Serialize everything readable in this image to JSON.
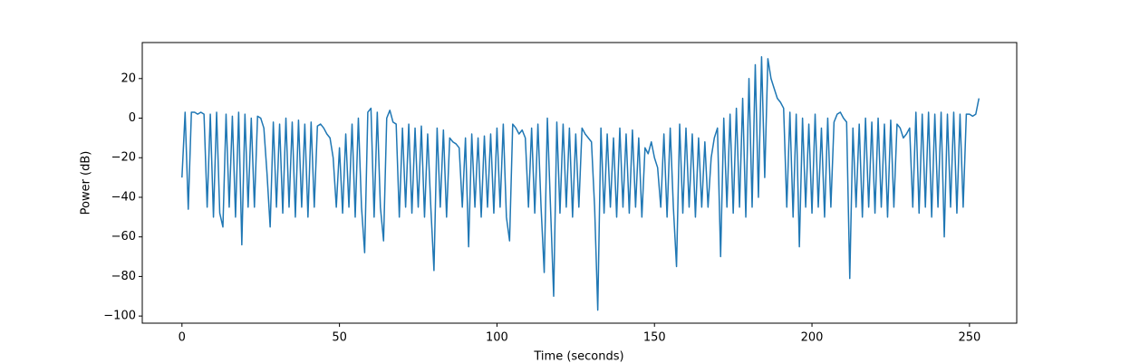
{
  "chart_data": {
    "type": "line",
    "x_label": "Time (seconds)",
    "y_label": "Power (dB)",
    "x": [
      0,
      1,
      2,
      3,
      4,
      5,
      6,
      7,
      8,
      9,
      10,
      11,
      12,
      13,
      14,
      15,
      16,
      17,
      18,
      19,
      20,
      21,
      22,
      23,
      24,
      25,
      26,
      27,
      28,
      29,
      30,
      31,
      32,
      33,
      34,
      35,
      36,
      37,
      38,
      39,
      40,
      41,
      42,
      43,
      44,
      45,
      46,
      47,
      48,
      49,
      50,
      51,
      52,
      53,
      54,
      55,
      56,
      57,
      58,
      59,
      60,
      61,
      62,
      63,
      64,
      65,
      66,
      67,
      68,
      69,
      70,
      71,
      72,
      73,
      74,
      75,
      76,
      77,
      78,
      79,
      80,
      81,
      82,
      83,
      84,
      85,
      86,
      87,
      88,
      89,
      90,
      91,
      92,
      93,
      94,
      95,
      96,
      97,
      98,
      99,
      100,
      101,
      102,
      103,
      104,
      105,
      106,
      107,
      108,
      109,
      110,
      111,
      112,
      113,
      114,
      115,
      116,
      117,
      118,
      119,
      120,
      121,
      122,
      123,
      124,
      125,
      126,
      127,
      128,
      129,
      130,
      131,
      132,
      133,
      134,
      135,
      136,
      137,
      138,
      139,
      140,
      141,
      142,
      143,
      144,
      145,
      146,
      147,
      148,
      149,
      150,
      151,
      152,
      153,
      154,
      155,
      156,
      157,
      158,
      159,
      160,
      161,
      162,
      163,
      164,
      165,
      166,
      167,
      168,
      169,
      170,
      171,
      172,
      173,
      174,
      175,
      176,
      177,
      178,
      179,
      180,
      181,
      182,
      183,
      184,
      185,
      186,
      187,
      188,
      189,
      190,
      191,
      192,
      193,
      194,
      195,
      196,
      197,
      198,
      199,
      200,
      201,
      202,
      203,
      204,
      205,
      206,
      207,
      208,
      209,
      210,
      211,
      212,
      213,
      214,
      215,
      216,
      217,
      218,
      219,
      220,
      221,
      222,
      223,
      224,
      225,
      226,
      227,
      228,
      229,
      230,
      231,
      232,
      233,
      234,
      235,
      236,
      237,
      238,
      239,
      240,
      241,
      242,
      243,
      244,
      245,
      246,
      247,
      248,
      249,
      250,
      251,
      252,
      253
    ],
    "series": [
      {
        "color": "#1f77b4",
        "values": [
          -30,
          3,
          -46,
          3,
          3,
          2,
          3,
          2,
          -45,
          2,
          -50,
          3,
          -48,
          -55,
          2,
          -45,
          1,
          -50,
          3,
          -64,
          2,
          -45,
          0,
          -45,
          1,
          0,
          -5,
          -28,
          -55,
          -2,
          -45,
          -3,
          -48,
          0,
          -45,
          -2,
          -50,
          -1,
          -45,
          -3,
          -50,
          -2,
          -45,
          -4,
          -3,
          -5,
          -8,
          -10,
          -20,
          -45,
          -15,
          -48,
          -8,
          -45,
          -3,
          -50,
          0,
          -45,
          -68,
          3,
          5,
          -50,
          3,
          -45,
          -62,
          0,
          4,
          -2,
          -3,
          -50,
          -5,
          -45,
          -3,
          -48,
          -5,
          -45,
          -4,
          -50,
          -8,
          -45,
          -77,
          -5,
          -45,
          -6,
          -50,
          -10,
          -12,
          -13,
          -15,
          -45,
          -10,
          -65,
          -8,
          -45,
          -10,
          -50,
          -9,
          -45,
          -8,
          -48,
          -5,
          -45,
          -3,
          -50,
          -62,
          -3,
          -5,
          -8,
          -6,
          -10,
          -45,
          -5,
          -48,
          -3,
          -45,
          -78,
          0,
          -45,
          -90,
          -2,
          -48,
          -3,
          -45,
          -5,
          -50,
          -8,
          -45,
          -5,
          -8,
          -10,
          -12,
          -45,
          -97,
          -5,
          -48,
          -8,
          -45,
          -10,
          -50,
          -5,
          -45,
          -8,
          -48,
          -6,
          -45,
          -10,
          -50,
          -15,
          -18,
          -12,
          -20,
          -25,
          -45,
          -8,
          -50,
          -5,
          -45,
          -75,
          -3,
          -48,
          -5,
          -45,
          -8,
          -50,
          -10,
          -45,
          -12,
          -45,
          -20,
          -10,
          -5,
          -70,
          0,
          -45,
          2,
          -48,
          5,
          -45,
          10,
          -50,
          20,
          -45,
          27,
          -40,
          31,
          -30,
          30,
          20,
          15,
          10,
          8,
          5,
          -45,
          3,
          -50,
          2,
          -65,
          0,
          -45,
          -3,
          -48,
          2,
          -45,
          -5,
          -50,
          0,
          -45,
          -2,
          2,
          3,
          0,
          -2,
          -81,
          -5,
          -45,
          -3,
          -50,
          0,
          -45,
          -2,
          -48,
          0,
          -45,
          -3,
          -50,
          -1,
          -45,
          -3,
          -5,
          -10,
          -8,
          -5,
          -45,
          3,
          -48,
          2,
          -45,
          3,
          -50,
          2,
          -45,
          3,
          -60,
          2,
          -45,
          3,
          -48,
          2,
          -45,
          2,
          2,
          1,
          2,
          10
        ]
      }
    ],
    "xlim": [
      -12.6,
      265
    ],
    "ylim": [
      -103.6,
      38.2
    ],
    "xticks": [
      0,
      50,
      100,
      150,
      200,
      250
    ],
    "yticks": [
      {
        "value": -100,
        "label": "−100"
      },
      {
        "value": -80,
        "label": "−80"
      },
      {
        "value": -60,
        "label": "−60"
      },
      {
        "value": -40,
        "label": "−40"
      },
      {
        "value": -20,
        "label": "−20"
      },
      0,
      20
    ]
  }
}
